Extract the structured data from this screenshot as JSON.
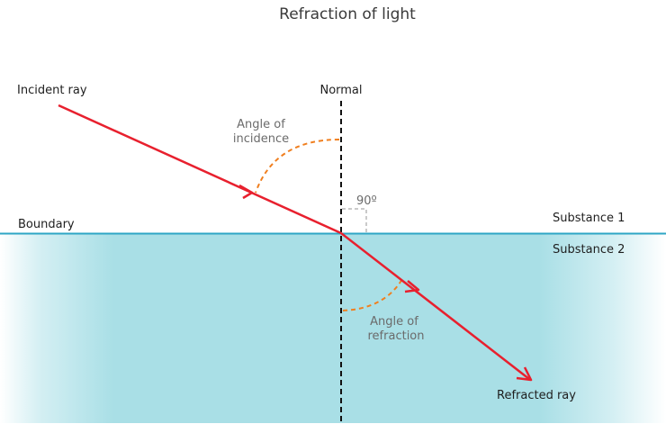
{
  "title": "Refraction of light",
  "labels": {
    "incident_ray": "Incident ray",
    "normal": "Normal",
    "angle_incidence_1": "Angle of",
    "angle_incidence_2": "incidence",
    "right_angle": "90º",
    "boundary": "Boundary",
    "substance_1": "Substance 1",
    "substance_2": "Substance 2",
    "angle_refraction_1": "Angle of",
    "angle_refraction_2": "refraction",
    "refracted_ray": "Refracted ray"
  },
  "colors": {
    "ray": "#e8202e",
    "angle_arc": "#f07f1f",
    "water": "#a9dfe6",
    "boundary_line": "#2ea6c5",
    "normal_line": "#111111",
    "right_angle_marker": "#b8b8b8"
  }
}
